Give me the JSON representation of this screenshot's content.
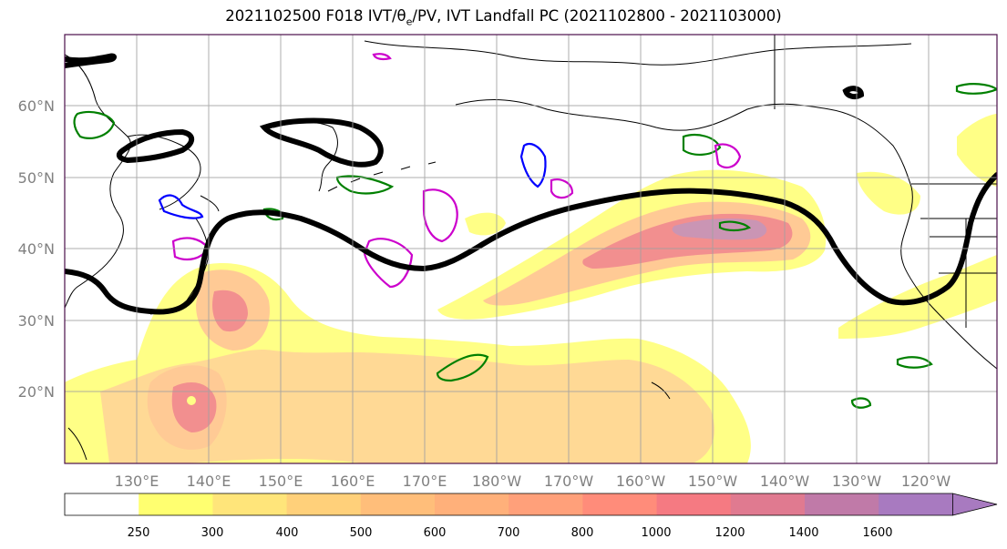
{
  "title": {
    "prefix": "2021102500 F018 IVT/θ",
    "sub": "e",
    "suffix": "/PV, IVT Landfall PC (2021102800 - 2021103000)"
  },
  "lat_labels": [
    "60°N",
    "50°N",
    "40°N",
    "30°N",
    "20°N"
  ],
  "lon_labels": [
    "130°E",
    "140°E",
    "150°E",
    "160°E",
    "170°E",
    "180°W",
    "170°W",
    "160°W",
    "150°W",
    "140°W",
    "130°W",
    "120°W"
  ],
  "colorbar": {
    "levels": [
      "250",
      "300",
      "400",
      "500",
      "600",
      "700",
      "800",
      "1000",
      "1200",
      "1400",
      "1600"
    ],
    "colors": [
      "#ffffff",
      "#ffff70",
      "#ffe57a",
      "#ffd07a",
      "#ffbe7a",
      "#ffb07a",
      "#ffa07a",
      "#ff8c7a",
      "#f57a82",
      "#e07a90",
      "#c07aa8",
      "#a87ac0"
    ]
  },
  "colors": {
    "ivt_low": "#ffff80",
    "ivt_mid": "#ffc080",
    "ivt_high": "#f58080",
    "ivt_max": "#c890b0",
    "pv_positive": "#0000ff",
    "pv_negative": "#cc00cc",
    "theta_e": "#008000",
    "pc_contour": "#000000",
    "grid": "#a0a0a0",
    "coast": "#000000"
  }
}
